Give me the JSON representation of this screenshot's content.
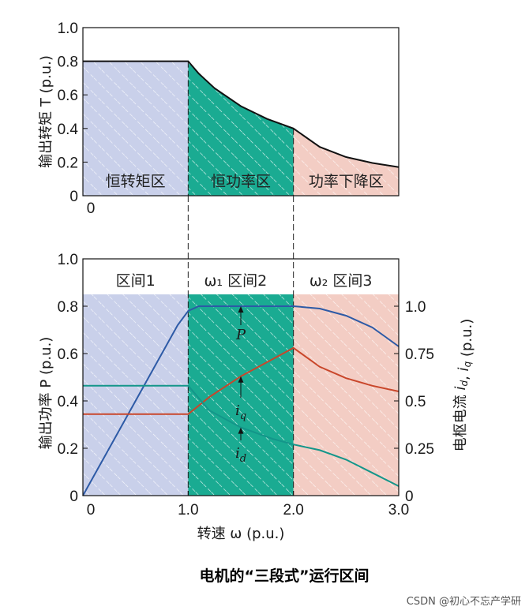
{
  "colors": {
    "region1": "#c9d0ea",
    "region2": "#1aab92",
    "region3": "#f3cdc4",
    "power_line": "#2d5aa6",
    "iq_line": "#c9462a",
    "id_line": "#14968a",
    "torque_line": "#111111"
  },
  "chart_data": [
    {
      "type": "area",
      "ylabel": "输出转矩 T (p.u.)",
      "xlim": [
        0,
        3
      ],
      "ylim": [
        0,
        1
      ],
      "yticks": [
        "0",
        "0.2",
        "0.4",
        "0.6",
        "0.8",
        "1.0"
      ],
      "xticks": [
        "0"
      ],
      "regions": [
        {
          "label": "恒转矩区",
          "x0": 0,
          "x1": 1
        },
        {
          "label": "恒功率区",
          "x0": 1,
          "x1": 2
        },
        {
          "label": "功率下降区",
          "x0": 2,
          "x1": 3
        }
      ],
      "series": [
        {
          "x": [
            0,
            0.5,
            1.0,
            1.1,
            1.25,
            1.5,
            1.75,
            2.0,
            2.25,
            2.5,
            2.75,
            3.0
          ],
          "y": [
            0.8,
            0.8,
            0.8,
            0.727,
            0.64,
            0.533,
            0.457,
            0.4,
            0.29,
            0.23,
            0.195,
            0.17
          ]
        }
      ]
    },
    {
      "type": "line",
      "xlabel": "转速 ω (p.u.)",
      "ylabel": "输出功率 P (p.u.)",
      "y2label": "电枢电流 i_d, i_q (p.u.)",
      "xlim": [
        0,
        3
      ],
      "ylim": [
        0,
        1
      ],
      "y2lim": [
        0,
        1.25
      ],
      "xticks": [
        "0",
        "1.0",
        "2.0",
        "3.0"
      ],
      "yticks": [
        "0",
        "0.2",
        "0.4",
        "0.6",
        "0.8",
        "1.0"
      ],
      "y2ticks": [
        "0",
        "0.25",
        "0.5",
        "0.75",
        "1.0"
      ],
      "region_labels": [
        {
          "text": "区间1",
          "x": 0.5
        },
        {
          "text": "ω₁ 区间2",
          "x": 1.45
        },
        {
          "text": "ω₂ 区间3",
          "x": 2.45
        }
      ],
      "annotations": [
        {
          "text": "P",
          "x": 1.5,
          "y": 0.66
        },
        {
          "text": "i_q",
          "x": 1.5,
          "y": 0.34
        },
        {
          "text": "i_d",
          "x": 1.5,
          "y": 0.16
        }
      ],
      "series": [
        {
          "key": "P",
          "axis": "left",
          "x": [
            0,
            0.5,
            0.9,
            1.0,
            1.1,
            1.25,
            1.5,
            2.0,
            2.25,
            2.5,
            2.75,
            3.0
          ],
          "y": [
            0,
            0.4,
            0.72,
            0.78,
            0.8,
            0.8,
            0.8,
            0.8,
            0.79,
            0.76,
            0.71,
            0.63
          ]
        },
        {
          "key": "i_q",
          "axis": "right",
          "x": [
            0,
            0.5,
            1.0,
            1.2,
            1.5,
            1.8,
            2.0,
            2.25,
            2.5,
            2.75,
            3.0
          ],
          "y": [
            0.43,
            0.43,
            0.43,
            0.52,
            0.63,
            0.72,
            0.78,
            0.68,
            0.62,
            0.58,
            0.55
          ]
        },
        {
          "key": "i_d",
          "axis": "right",
          "x": [
            0,
            0.5,
            1.0,
            1.2,
            1.5,
            1.8,
            2.0,
            2.25,
            2.5,
            2.75,
            3.0
          ],
          "y": [
            0.58,
            0.58,
            0.58,
            0.45,
            0.36,
            0.3,
            0.27,
            0.24,
            0.19,
            0.12,
            0.05
          ]
        }
      ]
    }
  ],
  "caption": "电机的“三段式”运行区间",
  "watermark": "CSDN @初心不忘产学研"
}
